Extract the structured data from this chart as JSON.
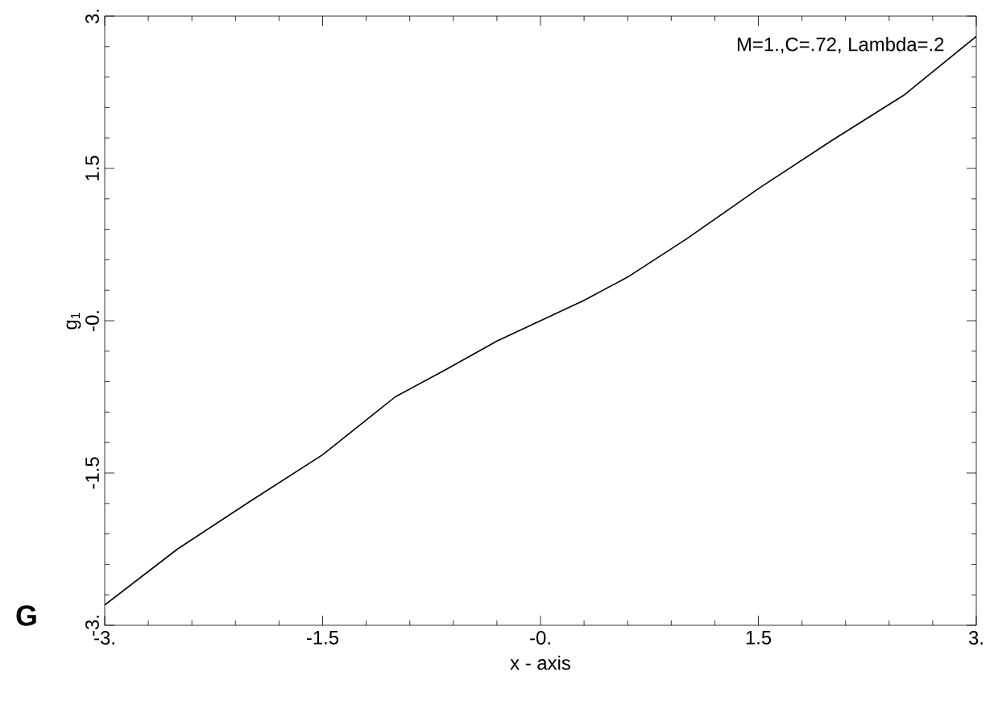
{
  "chart_data": {
    "type": "line",
    "xlabel": "x - axis",
    "ylabel": "g$_{1}$",
    "annotations": [
      "M=1.,C=.72, Lambda=.2",
      "G"
    ],
    "x": [
      -3,
      -2.5,
      -2,
      -1.5,
      -1,
      -0.65,
      -0.3,
      0,
      0.3,
      0.6,
      1,
      1.5,
      2,
      2.5,
      3
    ],
    "series": [
      {
        "color": "#000000",
        "values": [
          -2.8,
          -2.25,
          -1.78,
          -1.32,
          -0.75,
          -0.48,
          -0.2,
          0,
          0.2,
          0.43,
          0.8,
          1.3,
          1.77,
          2.22,
          2.8
        ]
      }
    ],
    "xlim": [
      -3,
      3
    ],
    "ylim": [
      -3,
      3
    ],
    "xticks": [
      {
        "value": -3,
        "label": "-3."
      },
      {
        "value": -1.5,
        "label": "-1.5"
      },
      {
        "value": 0,
        "label": "-0."
      },
      {
        "value": 1.5,
        "label": "1.5"
      },
      {
        "value": 3,
        "label": "3."
      }
    ],
    "yticks": [
      {
        "value": -3,
        "label": "-3."
      },
      {
        "value": -1.5,
        "label": "-1.5"
      },
      {
        "value": 0,
        "label": "-0."
      },
      {
        "value": 1.5,
        "label": "1.5"
      },
      {
        "value": 3,
        "label": "3."
      }
    ],
    "grid": false,
    "marker": "none",
    "line_style": "solid"
  }
}
